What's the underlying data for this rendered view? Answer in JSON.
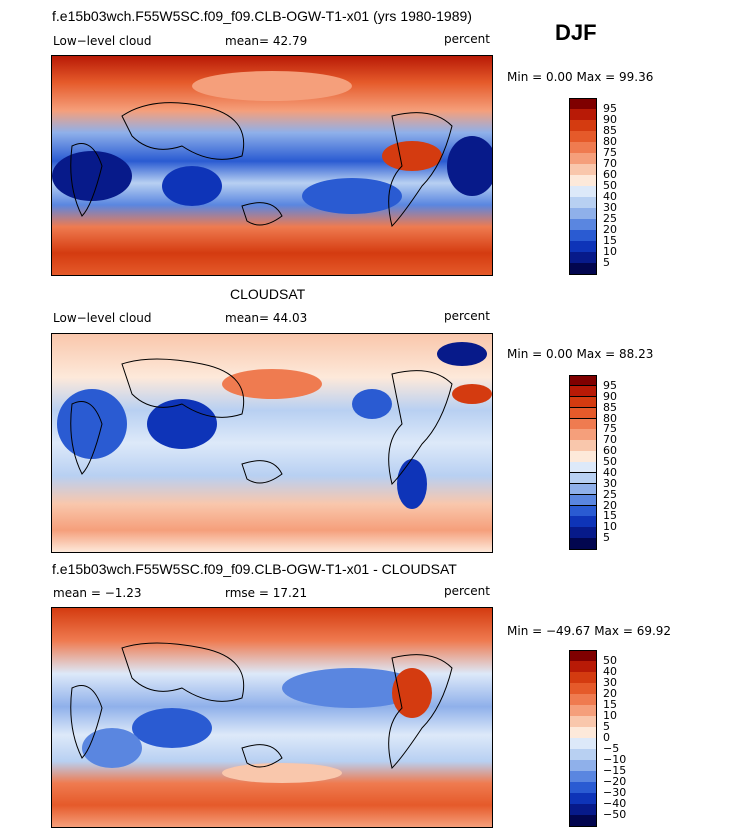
{
  "season": "DJF",
  "panels": [
    {
      "title": "f.e15b03wch.F55W5SC.f09_f09.CLB-OGW-T1-x01 (yrs 1980-1989)",
      "left_label": "Low−level cloud",
      "mean_text": "mean=  42.79",
      "units": "percent",
      "minmax": "Min =    0.00 Max =  99.36",
      "colorbar_labels": [
        "95",
        "90",
        "85",
        "80",
        "75",
        "70",
        "60",
        "50",
        "40",
        "30",
        "25",
        "20",
        "15",
        "10",
        "5"
      ],
      "colorbar_colors": [
        "#7f0000",
        "#b81a06",
        "#d43b10",
        "#e55a2a",
        "#ef7b50",
        "#f59f7b",
        "#f9c7ac",
        "#fde9da",
        "#dde9f9",
        "#b8d0f2",
        "#8fb0ea",
        "#5a86e0",
        "#2a5bd2",
        "#0e34b8",
        "#071a8a",
        "#02064f"
      ]
    },
    {
      "title": "CLOUDSAT",
      "left_label": "Low−level cloud",
      "mean_text": "mean=  44.03",
      "units": "percent",
      "minmax": "Min =    0.00 Max =  88.23",
      "colorbar_labels": [
        "95",
        "90",
        "85",
        "80",
        "75",
        "70",
        "60",
        "50",
        "40",
        "30",
        "25",
        "20",
        "15",
        "10",
        "5"
      ],
      "colorbar_colors": [
        "#7f0000",
        "#b81a06",
        "#d43b10",
        "#e55a2a",
        "#ef7b50",
        "#f59f7b",
        "#f9c7ac",
        "#fde9da",
        "#dde9f9",
        "#b8d0f2",
        "#8fb0ea",
        "#5a86e0",
        "#2a5bd2",
        "#0e34b8",
        "#071a8a",
        "#02064f"
      ]
    },
    {
      "title": "f.e15b03wch.F55W5SC.f09_f09.CLB-OGW-T1-x01 - CLOUDSAT",
      "left_label": "mean =  −1.23",
      "mean_text": "rmse =  17.21",
      "units": "percent",
      "minmax": "Min = −49.67 Max =  69.92",
      "colorbar_labels": [
        "50",
        "40",
        "30",
        "20",
        "15",
        "10",
        "5",
        "0",
        "−5",
        "−10",
        "−15",
        "−20",
        "−30",
        "−40",
        "−50"
      ],
      "colorbar_colors": [
        "#7f0000",
        "#b81a06",
        "#d43b10",
        "#e55a2a",
        "#ef7b50",
        "#f59f7b",
        "#f9c7ac",
        "#fde9da",
        "#dde9f9",
        "#b8d0f2",
        "#8fb0ea",
        "#5a86e0",
        "#2a5bd2",
        "#0e34b8",
        "#071a8a",
        "#02064f"
      ]
    }
  ]
}
